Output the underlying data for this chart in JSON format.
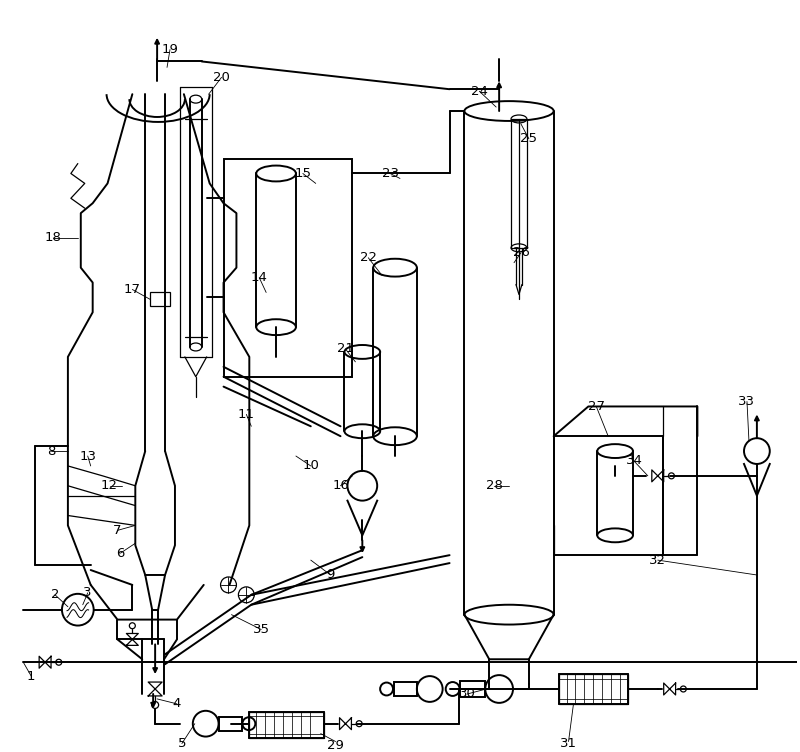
{
  "bg": "#ffffff",
  "fg": "#000000",
  "lw": 1.4,
  "lt": 0.9,
  "fs": 9.5
}
